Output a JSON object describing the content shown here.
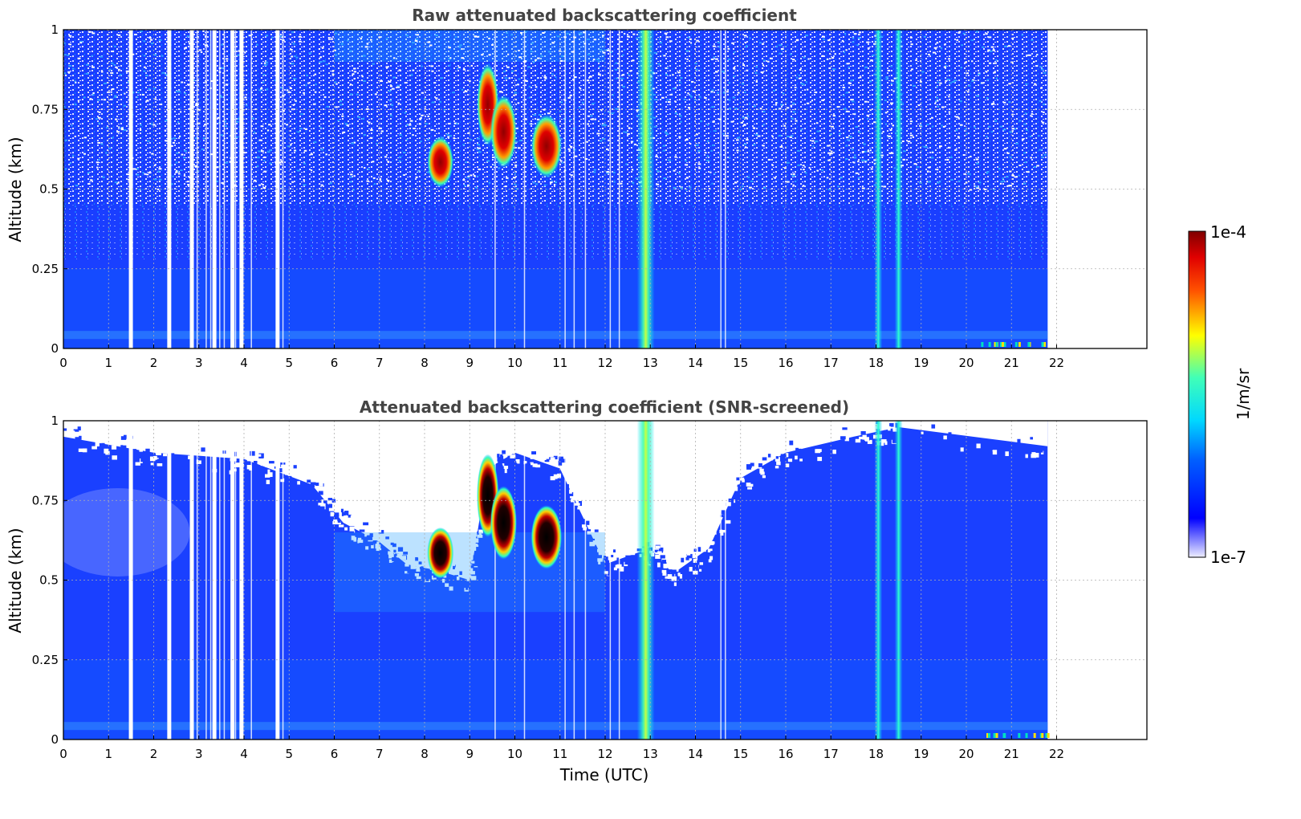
{
  "chart_data": [
    {
      "type": "heatmap",
      "title": "Raw attenuated backscattering coefficient",
      "xlabel": "",
      "ylabel": "Altitude (km)",
      "xlim": [
        0,
        24
      ],
      "ylim": [
        0,
        1
      ],
      "x_ticks": [
        "0",
        "1",
        "2",
        "3",
        "4",
        "5",
        "6",
        "7",
        "8",
        "9",
        "10",
        "11",
        "12",
        "13",
        "14",
        "15",
        "16",
        "17",
        "18",
        "19",
        "20",
        "21",
        "22"
      ],
      "y_ticks": [
        "0",
        "0.25",
        "0.5",
        "0.75",
        "1"
      ],
      "data_time_range": [
        0,
        21.8
      ],
      "grid": true,
      "data_gaps_utc": [
        1.45,
        2.3,
        2.8,
        3.3,
        3.7,
        3.9,
        4.7
      ],
      "vertical_bright_streaks_utc": [
        12.9,
        18.05,
        18.5
      ],
      "cloud_features": [
        {
          "time_utc": [
            8.2,
            8.5
          ],
          "altitude_km": [
            0.52,
            0.65
          ],
          "level": "high"
        },
        {
          "time_utc": [
            9.3,
            9.5
          ],
          "altitude_km": [
            0.65,
            0.88
          ],
          "level": "high"
        },
        {
          "time_utc": [
            9.6,
            9.9
          ],
          "altitude_km": [
            0.58,
            0.78
          ],
          "level": "high"
        },
        {
          "time_utc": [
            10.5,
            10.9
          ],
          "altitude_km": [
            0.55,
            0.72
          ],
          "level": "high"
        }
      ]
    },
    {
      "type": "heatmap",
      "title": "Attenuated backscattering coefficient (SNR-screened)",
      "xlabel": "Time (UTC)",
      "ylabel": "Altitude (km)",
      "xlim": [
        0,
        24
      ],
      "ylim": [
        0,
        1
      ],
      "x_ticks": [
        "0",
        "1",
        "2",
        "3",
        "4",
        "5",
        "6",
        "7",
        "8",
        "9",
        "10",
        "11",
        "12",
        "13",
        "14",
        "15",
        "16",
        "17",
        "18",
        "19",
        "20",
        "21",
        "22"
      ],
      "y_ticks": [
        "0",
        "0.25",
        "0.5",
        "0.75",
        "1"
      ],
      "data_time_range": [
        0,
        21.8
      ],
      "grid": true,
      "screened_top_boundary_km": [
        {
          "time_utc": 0,
          "alt": 0.95
        },
        {
          "time_utc": 2,
          "alt": 0.9
        },
        {
          "time_utc": 4,
          "alt": 0.88
        },
        {
          "time_utc": 5.5,
          "alt": 0.8
        },
        {
          "time_utc": 6.2,
          "alt": 0.68
        },
        {
          "time_utc": 7,
          "alt": 0.62
        },
        {
          "time_utc": 7.6,
          "alt": 0.55
        },
        {
          "time_utc": 8.3,
          "alt": 0.53
        },
        {
          "time_utc": 9,
          "alt": 0.5
        },
        {
          "time_utc": 9.4,
          "alt": 0.85
        },
        {
          "time_utc": 10,
          "alt": 0.9
        },
        {
          "time_utc": 11,
          "alt": 0.85
        },
        {
          "time_utc": 12,
          "alt": 0.55
        },
        {
          "time_utc": 13,
          "alt": 0.6
        },
        {
          "time_utc": 13.5,
          "alt": 0.52
        },
        {
          "time_utc": 14.3,
          "alt": 0.6
        },
        {
          "time_utc": 15,
          "alt": 0.82
        },
        {
          "time_utc": 16,
          "alt": 0.9
        },
        {
          "time_utc": 17.5,
          "alt": 0.95
        },
        {
          "time_utc": 18.5,
          "alt": 0.98
        },
        {
          "time_utc": 21.8,
          "alt": 0.92
        }
      ]
    }
  ],
  "colorbar": {
    "label": "1/m/sr",
    "min_label": "1e-7",
    "max_label": "1e-4",
    "scale": "log",
    "colormap": "jet"
  },
  "colors": {
    "background_blue": "#1030ff",
    "low_layer_blue": "#1456ff",
    "cloud_red": "#a00000",
    "cloud_black": "#000000",
    "title_gray": "#444444"
  }
}
